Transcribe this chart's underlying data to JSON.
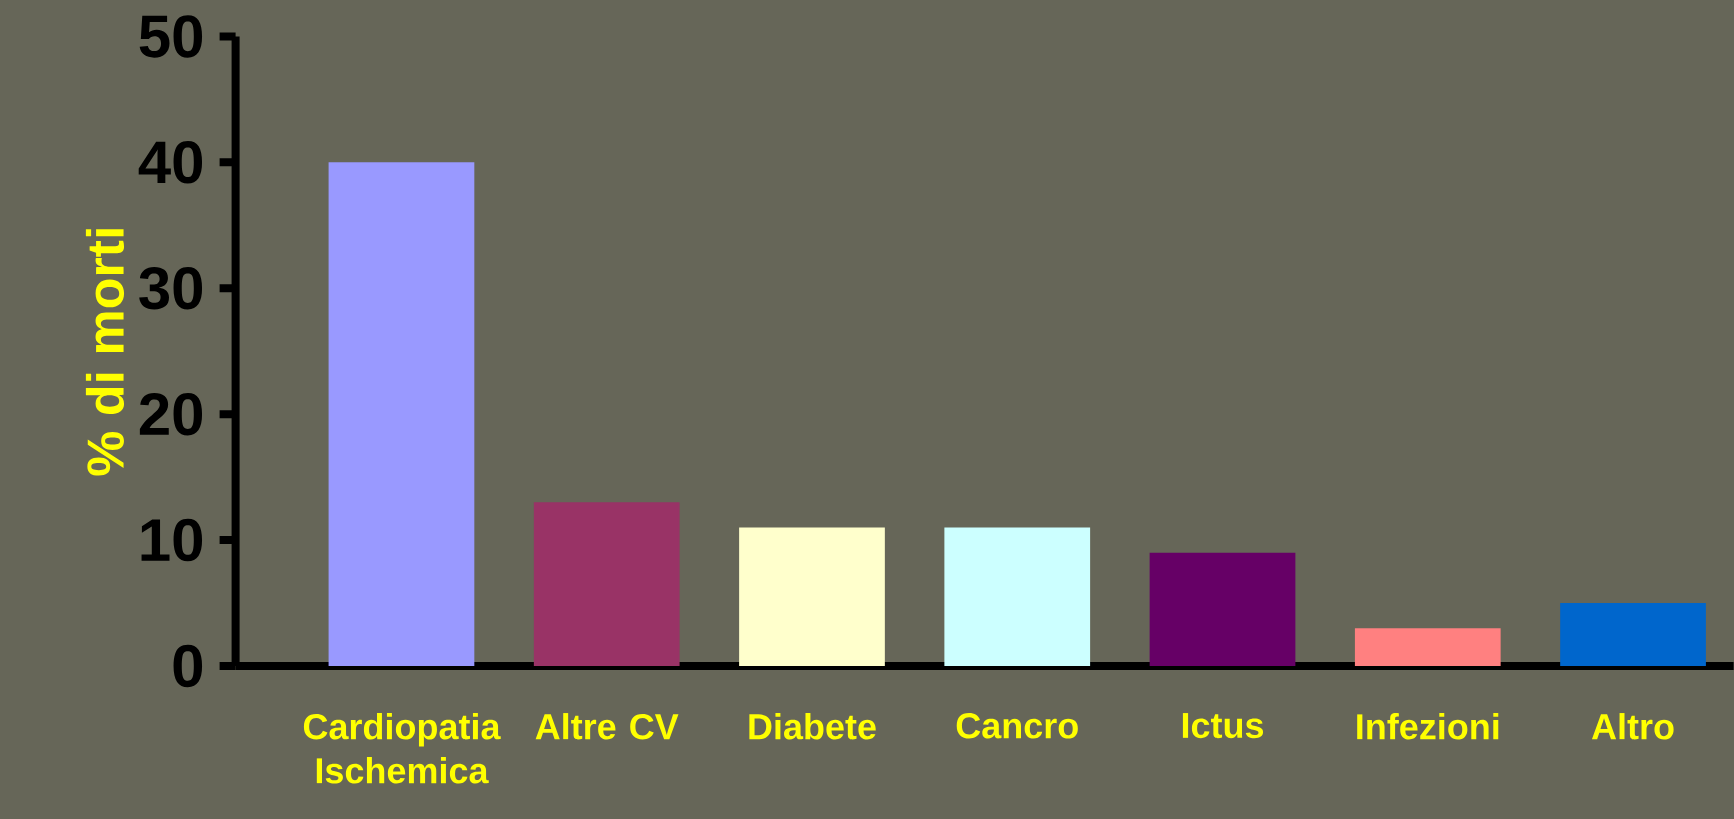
{
  "chart_data": {
    "type": "bar",
    "ylabel": "% di morti",
    "categories": [
      "Cardiopatia Ischemica",
      "Altre CV",
      "Diabete",
      "Cancro",
      "Ictus",
      "Infezioni",
      "Altro"
    ],
    "values": [
      40,
      13,
      11,
      11,
      9,
      3,
      5
    ],
    "colors": [
      "#9999ff",
      "#993366",
      "#ffffcc",
      "#ccffff",
      "#660066",
      "#ff8080",
      "#0066cc"
    ],
    "ylim": [
      0,
      50
    ],
    "yticks": [
      0,
      10,
      20,
      30,
      40,
      50
    ]
  }
}
